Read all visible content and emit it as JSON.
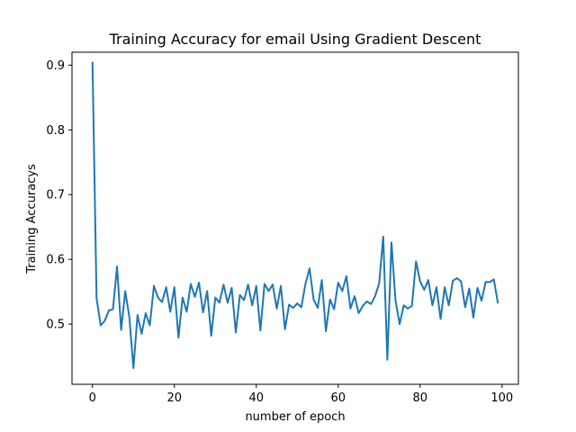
{
  "chart_data": {
    "type": "line",
    "title": "Training Accuracy for email Using Gradient Descent",
    "xlabel": "number of epoch",
    "ylabel": "Training Accuracys",
    "xlim": [
      -5,
      104
    ],
    "ylim": [
      0.407,
      0.92
    ],
    "xticks": [
      0,
      20,
      40,
      60,
      80,
      100
    ],
    "yticks": [
      0.5,
      0.6,
      0.7,
      0.8,
      0.9
    ],
    "ytick_labels": [
      "0.5",
      "0.6",
      "0.7",
      "0.8",
      "0.9"
    ],
    "grid": false,
    "line_color": "#1f77b4",
    "series": [
      {
        "values": [
          0.905,
          0.54,
          0.498,
          0.505,
          0.521,
          0.523,
          0.589,
          0.491,
          0.551,
          0.511,
          0.432,
          0.514,
          0.485,
          0.517,
          0.498,
          0.559,
          0.541,
          0.534,
          0.557,
          0.519,
          0.557,
          0.479,
          0.541,
          0.519,
          0.562,
          0.542,
          0.564,
          0.518,
          0.551,
          0.482,
          0.541,
          0.533,
          0.561,
          0.533,
          0.556,
          0.487,
          0.545,
          0.537,
          0.561,
          0.529,
          0.559,
          0.49,
          0.562,
          0.551,
          0.561,
          0.524,
          0.559,
          0.492,
          0.53,
          0.525,
          0.532,
          0.526,
          0.562,
          0.586,
          0.538,
          0.525,
          0.568,
          0.489,
          0.538,
          0.523,
          0.564,
          0.551,
          0.574,
          0.524,
          0.543,
          0.517,
          0.528,
          0.535,
          0.531,
          0.543,
          0.563,
          0.635,
          0.445,
          0.626,
          0.536,
          0.5,
          0.529,
          0.524,
          0.528,
          0.597,
          0.566,
          0.553,
          0.568,
          0.529,
          0.557,
          0.508,
          0.557,
          0.529,
          0.567,
          0.571,
          0.566,
          0.526,
          0.555,
          0.51,
          0.556,
          0.536,
          0.565,
          0.565,
          0.569,
          0.532
        ]
      }
    ]
  }
}
